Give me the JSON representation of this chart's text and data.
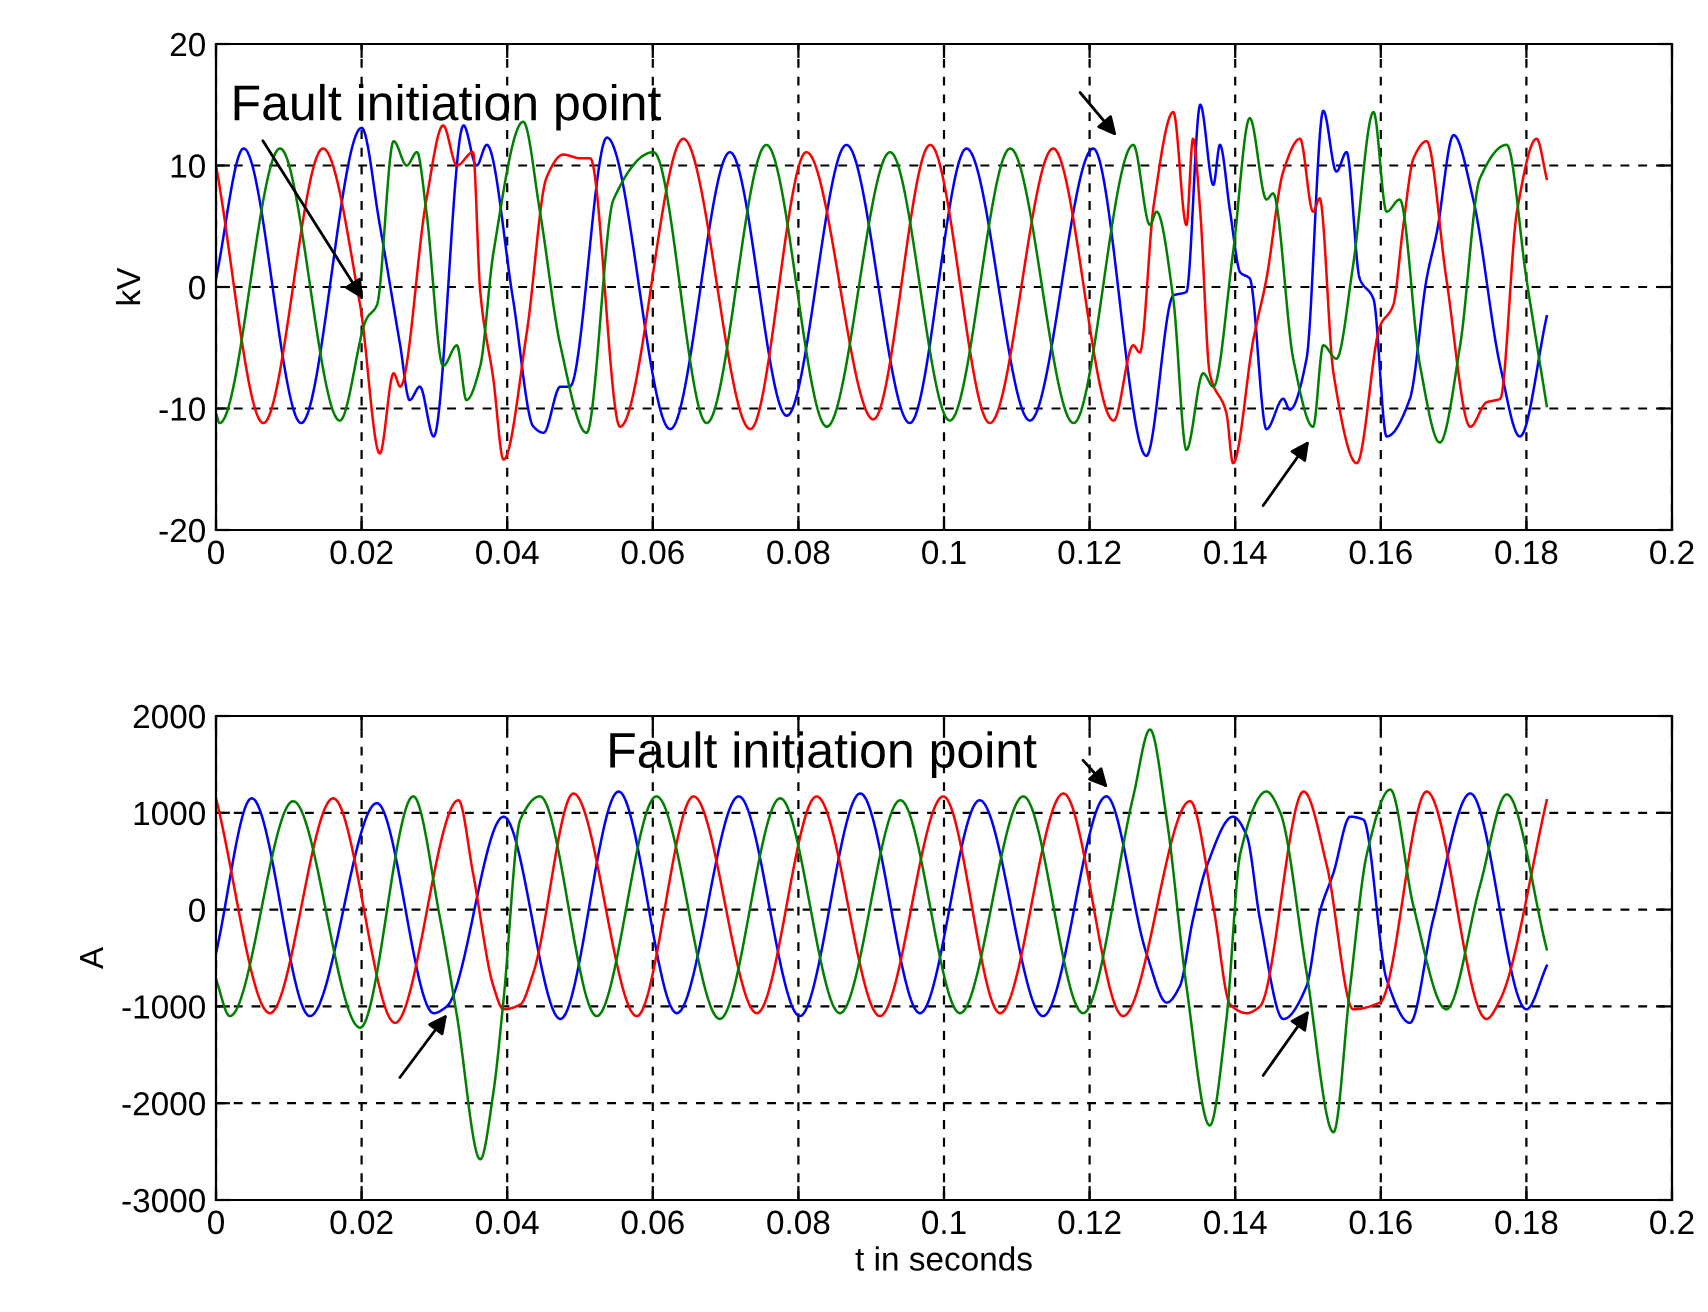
{
  "chart_data": [
    {
      "type": "line",
      "ylabel": "kV",
      "xlim": [
        0,
        0.2
      ],
      "ylim": [
        -20,
        20
      ],
      "xticks": [
        0,
        0.02,
        0.04,
        0.06,
        0.08,
        0.1,
        0.12,
        0.14,
        0.16,
        0.18,
        0.2
      ],
      "yticks": [
        -20,
        -10,
        0,
        10,
        20
      ],
      "grid": true,
      "annotations": [
        {
          "text": "Fault initiation point",
          "x": 0.0202,
          "y": -1.0
        }
      ],
      "series": [
        {
          "color": "#0000ff",
          "x": [
            0,
            0.0038,
            0.0117,
            0.02,
            0.0225,
            0.0253,
            0.0266,
            0.028,
            0.0299,
            0.034,
            0.0358,
            0.0372,
            0.0408,
            0.0436,
            0.045,
            0.0473,
            0.0486,
            0.0537,
            0.0624,
            0.0706,
            0.0784,
            0.0866,
            0.0953,
            0.1031,
            0.1118,
            0.1205,
            0.1278,
            0.1315,
            0.1333,
            0.1352,
            0.137,
            0.1379,
            0.1393,
            0.1407,
            0.142,
            0.1443,
            0.1466,
            0.1475,
            0.1498,
            0.1521,
            0.1539,
            0.1553,
            0.1571,
            0.159,
            0.1608,
            0.164,
            0.1663,
            0.1677,
            0.17,
            0.1727,
            0.1764,
            0.1791,
            0.1828
          ],
          "values": [
            0.7,
            11.4,
            -11.2,
            13.1,
            5.1,
            -4.8,
            -9.3,
            -8.2,
            -12.3,
            13.3,
            10.0,
            11.7,
            -1.0,
            -11.5,
            -12.0,
            -8.2,
            -8.2,
            12.3,
            -11.7,
            11.1,
            -10.6,
            11.7,
            -11.2,
            11.4,
            -11.0,
            11.4,
            -13.9,
            -0.7,
            -0.4,
            15.0,
            8.4,
            11.7,
            6.2,
            1.2,
            0.7,
            -11.7,
            -9.2,
            -10.1,
            -5.9,
            14.5,
            9.5,
            11.1,
            0.7,
            -1.0,
            -12.3,
            -9.2,
            0.7,
            4.5,
            12.5,
            7.2,
            -6.5,
            -12.3,
            -2.4
          ]
        },
        {
          "color": "#ff0000",
          "x": [
            0,
            0.0065,
            0.0147,
            0.0198,
            0.0225,
            0.0244,
            0.0253,
            0.0289,
            0.0312,
            0.0331,
            0.0353,
            0.0363,
            0.0381,
            0.0395,
            0.0427,
            0.0454,
            0.0477,
            0.05,
            0.0514,
            0.0555,
            0.0642,
            0.0734,
            0.0811,
            0.0903,
            0.0981,
            0.1063,
            0.115,
            0.1233,
            0.126,
            0.1269,
            0.1288,
            0.1315,
            0.1333,
            0.1342,
            0.1352,
            0.1365,
            0.1388,
            0.1397,
            0.1425,
            0.1443,
            0.1466,
            0.1489,
            0.1507,
            0.1516,
            0.1535,
            0.1567,
            0.1599,
            0.1617,
            0.1631,
            0.1645,
            0.1663,
            0.169,
            0.1723,
            0.1745,
            0.1764,
            0.1787,
            0.1814,
            0.1828
          ],
          "values": [
            10.0,
            -11.2,
            11.4,
            -1.5,
            -13.7,
            -7.1,
            -8.2,
            7.2,
            13.3,
            10.0,
            11.1,
            -0.4,
            -7.6,
            -14.2,
            -3.7,
            9.0,
            10.9,
            10.6,
            10.6,
            -11.5,
            12.2,
            -11.7,
            11.1,
            -10.9,
            11.7,
            -11.2,
            11.4,
            -11.0,
            -4.8,
            -5.4,
            6.7,
            14.4,
            5.1,
            12.2,
            6.2,
            -7.1,
            -10.4,
            -14.5,
            -4.3,
            0.7,
            9.5,
            12.2,
            6.2,
            7.3,
            -7.1,
            -14.5,
            -3.2,
            -1.5,
            5.1,
            10.6,
            12.0,
            0.7,
            -11.5,
            -9.5,
            -9.2,
            6.2,
            12.2,
            8.9
          ]
        },
        {
          "color": "#008000",
          "x": [
            0,
            0.0005,
            0.0088,
            0.017,
            0.0207,
            0.0221,
            0.0244,
            0.0262,
            0.0276,
            0.0289,
            0.0312,
            0.0331,
            0.0344,
            0.0363,
            0.0381,
            0.0422,
            0.0445,
            0.0473,
            0.0509,
            0.0546,
            0.0601,
            0.0674,
            0.0756,
            0.0839,
            0.0926,
            0.1008,
            0.1091,
            0.1178,
            0.126,
            0.1283,
            0.1292,
            0.1315,
            0.1333,
            0.1356,
            0.137,
            0.1397,
            0.142,
            0.1443,
            0.1452,
            0.148,
            0.1507,
            0.1521,
            0.1539,
            0.1562,
            0.159,
            0.1608,
            0.1626,
            0.1654,
            0.1681,
            0.1709,
            0.1736,
            0.1773,
            0.18,
            0.1828
          ],
          "values": [
            -10.4,
            -11.2,
            11.4,
            -11.0,
            -2.6,
            -1.5,
            12.0,
            10.0,
            11.1,
            6.2,
            -6.5,
            -4.8,
            -9.3,
            -6.5,
            2.8,
            13.6,
            6.2,
            -4.8,
            -12.0,
            7.2,
            11.1,
            -11.2,
            11.7,
            -11.5,
            11.1,
            -11.0,
            11.4,
            -11.2,
            11.7,
            5.1,
            6.2,
            -1.0,
            -13.4,
            -7.1,
            -8.2,
            2.8,
            13.9,
            7.2,
            7.7,
            -6.0,
            -11.5,
            -4.8,
            -5.9,
            1.8,
            14.4,
            6.2,
            7.2,
            -6.5,
            -12.8,
            -4.8,
            8.9,
            11.7,
            0.7,
            -9.8
          ]
        }
      ]
    },
    {
      "type": "line",
      "xlabel": "t in seconds",
      "ylabel": "A",
      "xlim": [
        0,
        0.2
      ],
      "ylim": [
        -3000,
        2000
      ],
      "xticks": [
        0,
        0.02,
        0.04,
        0.06,
        0.08,
        0.1,
        0.12,
        0.14,
        0.16,
        0.18,
        0.2
      ],
      "yticks": [
        -3000,
        -2000,
        -1000,
        0,
        1000,
        2000
      ],
      "grid": true,
      "annotations": [
        "Fault initiation point"
      ],
      "series": [
        {
          "color": "#0000ff",
          "x": [
            0,
            0.0049,
            0.0129,
            0.0221,
            0.0299,
            0.0317,
            0.0395,
            0.0473,
            0.0553,
            0.0633,
            0.0718,
            0.0802,
            0.0885,
            0.0967,
            0.1049,
            0.1136,
            0.1223,
            0.1278,
            0.1306,
            0.1324,
            0.1342,
            0.1361,
            0.1397,
            0.1416,
            0.1434,
            0.1466,
            0.1498,
            0.1516,
            0.1535,
            0.1558,
            0.1576,
            0.1608,
            0.164,
            0.1672,
            0.1723,
            0.18,
            0.1828
          ],
          "values": [
            -450,
            1150,
            -1100,
            1100,
            -1070,
            -1000,
            960,
            -1130,
            1220,
            -1070,
            1170,
            -1100,
            1200,
            -1070,
            1130,
            -1100,
            1170,
            -450,
            -960,
            -790,
            -100,
            450,
            960,
            760,
            -100,
            -1130,
            -790,
            -30,
            380,
            960,
            930,
            -720,
            -1170,
            -100,
            1200,
            -1030,
            -580
          ]
        },
        {
          "color": "#ff0000",
          "x": [
            0,
            0.0074,
            0.0161,
            0.0246,
            0.0333,
            0.0353,
            0.0381,
            0.0395,
            0.0418,
            0.0436,
            0.0491,
            0.0578,
            0.0656,
            0.0743,
            0.0825,
            0.0912,
            0.0999,
            0.1077,
            0.1164,
            0.1246,
            0.1338,
            0.137,
            0.1393,
            0.1416,
            0.1434,
            0.1494,
            0.1526,
            0.1562,
            0.1599,
            0.1663,
            0.1745,
            0.1764,
            0.1828
          ],
          "values": [
            1150,
            -1070,
            1150,
            -1170,
            1130,
            380,
            -790,
            -1030,
            -980,
            -650,
            1200,
            -1100,
            1170,
            -1070,
            1170,
            -1100,
            1170,
            -1070,
            1200,
            -1100,
            1120,
            30,
            -980,
            -1070,
            -1000,
            1220,
            450,
            -1030,
            -960,
            1220,
            -1130,
            -930,
            1130
          ]
        },
        {
          "color": "#008000",
          "x": [
            0,
            0.0019,
            0.0106,
            0.0198,
            0.0271,
            0.0308,
            0.0331,
            0.0363,
            0.0381,
            0.0395,
            0.0418,
            0.0445,
            0.0523,
            0.0605,
            0.0692,
            0.0775,
            0.0857,
            0.094,
            0.1022,
            0.1109,
            0.1191,
            0.126,
            0.1283,
            0.1306,
            0.1333,
            0.1365,
            0.1388,
            0.1407,
            0.1443,
            0.1462,
            0.1498,
            0.1535,
            0.1558,
            0.1581,
            0.1613,
            0.1645,
            0.169,
            0.1736,
            0.1773,
            0.1828
          ],
          "values": [
            -720,
            -1100,
            1120,
            -1220,
            1170,
            -100,
            -1100,
            -2580,
            -1890,
            -930,
            930,
            1170,
            -1100,
            1170,
            -1130,
            1150,
            -1070,
            1130,
            -1070,
            1170,
            -1070,
            1170,
            1860,
            930,
            -790,
            -2230,
            -1130,
            580,
            1220,
            1000,
            -650,
            -2300,
            -790,
            580,
            1240,
            30,
            -1030,
            240,
            1190,
            -410
          ]
        }
      ]
    }
  ]
}
